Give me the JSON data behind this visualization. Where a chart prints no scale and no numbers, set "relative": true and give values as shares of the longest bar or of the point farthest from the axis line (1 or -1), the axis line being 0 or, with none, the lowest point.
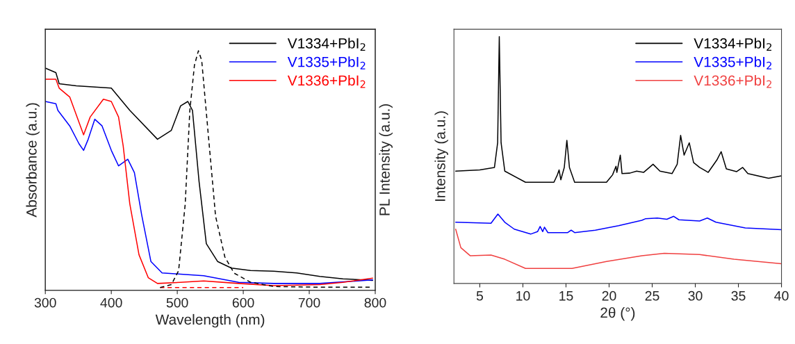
{
  "chart_data": [
    {
      "type": "line",
      "xlabel": "Wavelength (nm)",
      "ylabel": "Absorbance (a.u.)",
      "y2label": "PL Intensity (a.u.)",
      "relative": true,
      "xlim": [
        300,
        800
      ],
      "xticks": [
        300,
        400,
        500,
        600,
        700,
        800
      ],
      "legend": "top right",
      "grid": false,
      "marker": "none",
      "series": [
        {
          "name": "V1334+PbI$_{2}$",
          "color": "#000000",
          "x": [
            300,
            316,
            321,
            347,
            400,
            428,
            470,
            491,
            505,
            516,
            523,
            533,
            544,
            561,
            582,
            611,
            646,
            681,
            716,
            751,
            796
          ],
          "values": [
            1.0,
            0.98,
            0.93,
            0.92,
            0.91,
            0.81,
            0.68,
            0.72,
            0.83,
            0.85,
            0.81,
            0.49,
            0.21,
            0.13,
            0.1,
            0.089,
            0.086,
            0.078,
            0.063,
            0.052,
            0.045
          ]
        },
        {
          "name": "V1335+PbI$_{2}$",
          "color": "#0000ff",
          "x": [
            300,
            316,
            319,
            337,
            351,
            358,
            365,
            375,
            386,
            400,
            411,
            425,
            435,
            446,
            460,
            477,
            505,
            540,
            593,
            646,
            716,
            796
          ],
          "values": [
            0.85,
            0.84,
            0.81,
            0.74,
            0.66,
            0.63,
            0.68,
            0.77,
            0.74,
            0.63,
            0.56,
            0.59,
            0.53,
            0.34,
            0.13,
            0.078,
            0.073,
            0.066,
            0.036,
            0.031,
            0.031,
            0.047
          ]
        },
        {
          "name": "V1336+PbI$_{2}$",
          "color": "#ff0000",
          "x": [
            300,
            316,
            321,
            337,
            358,
            368,
            388,
            400,
            411,
            418,
            428,
            442,
            456,
            470,
            505,
            540,
            593,
            646,
            716,
            751,
            796
          ],
          "values": [
            0.95,
            0.95,
            0.91,
            0.87,
            0.7,
            0.78,
            0.86,
            0.85,
            0.78,
            0.65,
            0.39,
            0.16,
            0.057,
            0.031,
            0.036,
            0.042,
            0.031,
            0.021,
            0.026,
            0.036,
            0.055
          ]
        },
        {
          "color": "#ff0000",
          "axis": "y2",
          "line_style": "dashed",
          "x": [
            474,
            520,
            560,
            600
          ],
          "values": [
            0.012,
            0.012,
            0.012,
            0.012
          ]
        },
        {
          "color": "#000000",
          "axis": "y2",
          "line_style": "dashed",
          "x": [
            474,
            491,
            502,
            512,
            519,
            526,
            532,
            537,
            547,
            558,
            572,
            586,
            611,
            646,
            716,
            793
          ],
          "values": [
            0.012,
            0.024,
            0.082,
            0.36,
            0.75,
            0.94,
            1.0,
            0.96,
            0.65,
            0.31,
            0.14,
            0.072,
            0.034,
            0.016,
            0.013,
            0.013
          ]
        }
      ]
    },
    {
      "type": "line",
      "xlabel": "2θ (°)",
      "ylabel": "Intensity (a.u.)",
      "relative": true,
      "xlim": [
        2,
        40
      ],
      "xticks": [
        5,
        10,
        15,
        20,
        25,
        30,
        35,
        40
      ],
      "legend": "top right",
      "grid": false,
      "marker": "none",
      "series": [
        {
          "name": "V1334+PbI$_{2}$",
          "color": "#000000",
          "x": [
            2.2,
            5.0,
            6.7,
            7.07,
            7.26,
            7.47,
            7.9,
            10.3,
            13.6,
            14.0,
            14.2,
            14.4,
            14.8,
            15.1,
            15.4,
            16.0,
            19.7,
            20.4,
            20.8,
            20.9,
            21.3,
            21.5,
            22.4,
            23.2,
            24.0,
            25.1,
            25.9,
            27.3,
            27.9,
            28.3,
            28.7,
            29.3,
            29.8,
            30.5,
            31.5,
            32.5,
            33.0,
            33.6,
            34.8,
            35.5,
            36.1,
            38.5,
            40.0
          ],
          "values": [
            0.455,
            0.46,
            0.47,
            0.57,
            1.0,
            0.57,
            0.455,
            0.41,
            0.41,
            0.44,
            0.46,
            0.42,
            0.47,
            0.58,
            0.47,
            0.41,
            0.41,
            0.44,
            0.475,
            0.45,
            0.52,
            0.445,
            0.447,
            0.455,
            0.45,
            0.483,
            0.455,
            0.445,
            0.483,
            0.6,
            0.52,
            0.57,
            0.49,
            0.47,
            0.45,
            0.5,
            0.534,
            0.464,
            0.453,
            0.47,
            0.445,
            0.426,
            0.436
          ]
        },
        {
          "name": "V1335+PbI$_{2}$",
          "color": "#0000ff",
          "x": [
            2.2,
            6.3,
            7.1,
            7.9,
            9.0,
            10.9,
            11.7,
            12.0,
            12.3,
            12.5,
            12.9,
            15.2,
            15.6,
            16.0,
            18.4,
            21.1,
            23.8,
            24.2,
            25.6,
            26.7,
            27.5,
            28.1,
            30.5,
            31.4,
            32.4,
            35.8,
            40.0
          ],
          "values": [
            0.248,
            0.244,
            0.281,
            0.248,
            0.22,
            0.2,
            0.21,
            0.231,
            0.21,
            0.228,
            0.206,
            0.206,
            0.216,
            0.206,
            0.216,
            0.234,
            0.256,
            0.262,
            0.265,
            0.26,
            0.272,
            0.258,
            0.253,
            0.265,
            0.248,
            0.225,
            0.218
          ]
        },
        {
          "name": "V1336+PbI$_{2}$",
          "color": "#f04040",
          "x": [
            2.2,
            2.8,
            3.9,
            6.3,
            7.9,
            10.3,
            15.7,
            19.7,
            23.8,
            26.4,
            30.5,
            34.5,
            40.0
          ],
          "values": [
            0.22,
            0.145,
            0.112,
            0.115,
            0.098,
            0.061,
            0.061,
            0.089,
            0.112,
            0.122,
            0.117,
            0.098,
            0.08
          ]
        }
      ]
    }
  ]
}
